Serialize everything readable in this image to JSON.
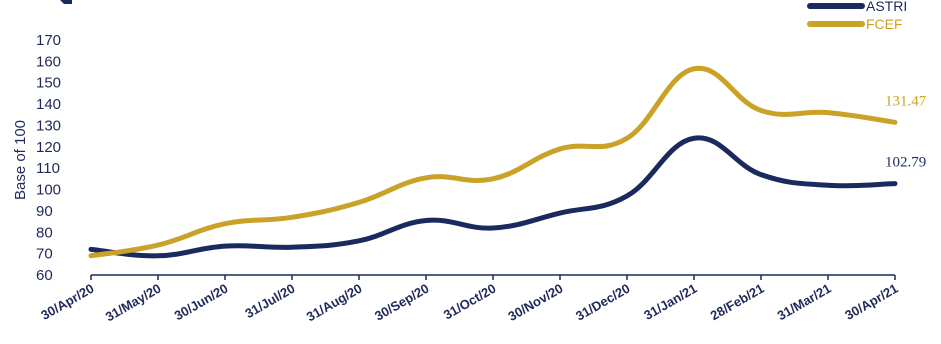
{
  "chart_data": {
    "type": "line",
    "title": "",
    "xlabel": "",
    "ylabel": "Base of 100",
    "ylim": [
      60,
      170
    ],
    "yticks": [
      60,
      70,
      80,
      90,
      100,
      110,
      120,
      130,
      140,
      150,
      160,
      170
    ],
    "grid": false,
    "legend": "top-right",
    "categories": [
      "30/Apr/20",
      "31/May/20",
      "30/Jun/20",
      "31/Jul/20",
      "31/Aug/20",
      "30/Sep/20",
      "31/Oct/20",
      "30/Nov/20",
      "31/Dec/20",
      "31/Jan/21",
      "28/Feb/21",
      "31/Mar/21",
      "30/Apr/21"
    ],
    "series": [
      {
        "name": "ASTRI",
        "color": "#1b2a5e",
        "values": [
          72,
          69,
          73.5,
          73,
          76,
          85.5,
          82,
          89,
          97,
          124,
          107,
          102,
          102.79
        ],
        "end_label": "102.79"
      },
      {
        "name": "FCEF",
        "color": "#c9a227",
        "values": [
          69,
          74,
          84,
          87,
          94,
          105.5,
          105,
          119,
          124,
          156.5,
          137,
          136,
          131.47
        ],
        "end_label": "131.47"
      }
    ]
  }
}
